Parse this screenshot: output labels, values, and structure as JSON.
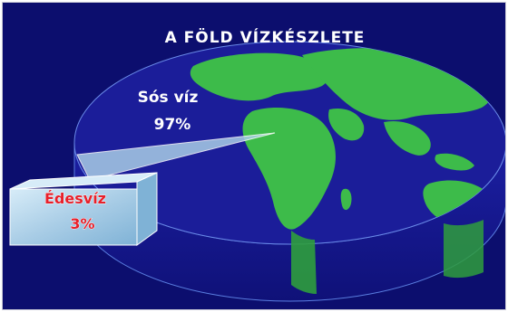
{
  "colors": {
    "background": "#0c0e6e",
    "ocean_top": "#1b1d99",
    "ocean_side": "#14168a",
    "land": "#3dbb4a",
    "freshwater_block": "#a9cde6",
    "title_text": "#ffffff",
    "small_label_text": "#e8202a"
  },
  "chart_data": {
    "type": "pie",
    "style": "3d-exploded",
    "title": "A FÖLD VÍZKÉSZLETE",
    "slices": [
      {
        "name": "Sós víz",
        "value": 97,
        "value_label": "97%"
      },
      {
        "name": "Édesvíz",
        "value": 3,
        "value_label": "3%",
        "exploded": true
      }
    ],
    "legend": "none"
  }
}
